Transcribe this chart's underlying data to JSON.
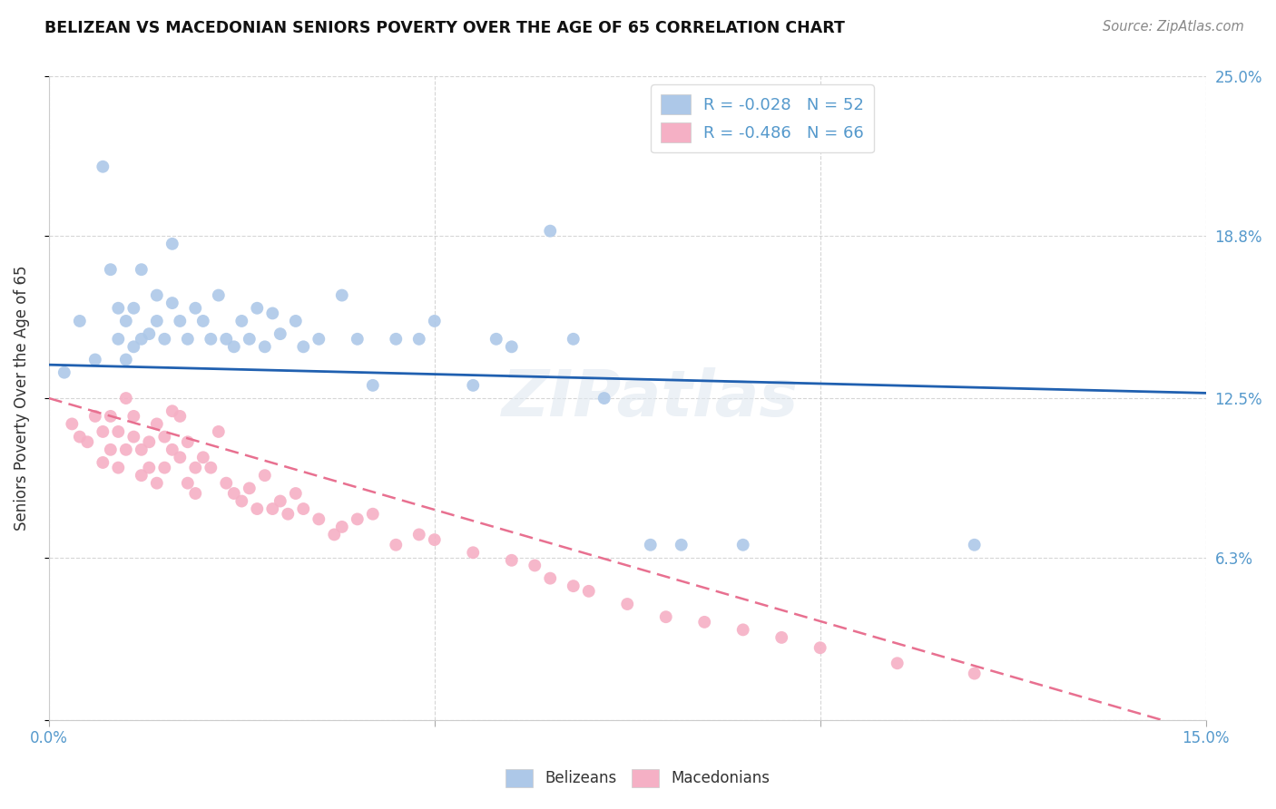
{
  "title": "BELIZEAN VS MACEDONIAN SENIORS POVERTY OVER THE AGE OF 65 CORRELATION CHART",
  "source": "Source: ZipAtlas.com",
  "ylabel": "Seniors Poverty Over the Age of 65",
  "xlim": [
    0.0,
    0.15
  ],
  "ylim": [
    0.0,
    0.25
  ],
  "ytick_positions": [
    0.0,
    0.063,
    0.125,
    0.188,
    0.25
  ],
  "ytick_labels": [
    "",
    "6.3%",
    "12.5%",
    "18.8%",
    "25.0%"
  ],
  "xtick_positions": [
    0.0,
    0.05,
    0.1,
    0.15
  ],
  "xtick_labels": [
    "0.0%",
    "",
    "",
    "15.0%"
  ],
  "belizean_color": "#adc8e8",
  "macedonian_color": "#f5b0c5",
  "belizean_line_color": "#2060b0",
  "macedonian_line_color": "#e87090",
  "tick_color": "#5599cc",
  "belizean_R": -0.028,
  "belizean_N": 52,
  "macedonian_R": -0.486,
  "macedonian_N": 66,
  "watermark": "ZIPatlas",
  "background_color": "#ffffff",
  "grid_color": "#cccccc",
  "belizean_x": [
    0.002,
    0.004,
    0.006,
    0.007,
    0.008,
    0.009,
    0.009,
    0.01,
    0.01,
    0.011,
    0.011,
    0.012,
    0.012,
    0.013,
    0.014,
    0.014,
    0.015,
    0.016,
    0.016,
    0.017,
    0.018,
    0.019,
    0.02,
    0.021,
    0.022,
    0.023,
    0.024,
    0.025,
    0.026,
    0.027,
    0.028,
    0.029,
    0.03,
    0.032,
    0.033,
    0.035,
    0.038,
    0.04,
    0.042,
    0.045,
    0.048,
    0.05,
    0.055,
    0.058,
    0.06,
    0.065,
    0.068,
    0.072,
    0.078,
    0.082,
    0.09,
    0.12
  ],
  "belizean_y": [
    0.135,
    0.155,
    0.14,
    0.215,
    0.175,
    0.148,
    0.16,
    0.14,
    0.155,
    0.145,
    0.16,
    0.148,
    0.175,
    0.15,
    0.155,
    0.165,
    0.148,
    0.162,
    0.185,
    0.155,
    0.148,
    0.16,
    0.155,
    0.148,
    0.165,
    0.148,
    0.145,
    0.155,
    0.148,
    0.16,
    0.145,
    0.158,
    0.15,
    0.155,
    0.145,
    0.148,
    0.165,
    0.148,
    0.13,
    0.148,
    0.148,
    0.155,
    0.13,
    0.148,
    0.145,
    0.19,
    0.148,
    0.125,
    0.068,
    0.068,
    0.068,
    0.068
  ],
  "macedonian_x": [
    0.003,
    0.004,
    0.005,
    0.006,
    0.007,
    0.007,
    0.008,
    0.008,
    0.009,
    0.009,
    0.01,
    0.01,
    0.011,
    0.011,
    0.012,
    0.012,
    0.013,
    0.013,
    0.014,
    0.014,
    0.015,
    0.015,
    0.016,
    0.016,
    0.017,
    0.017,
    0.018,
    0.018,
    0.019,
    0.019,
    0.02,
    0.021,
    0.022,
    0.023,
    0.024,
    0.025,
    0.026,
    0.027,
    0.028,
    0.029,
    0.03,
    0.031,
    0.032,
    0.033,
    0.035,
    0.037,
    0.038,
    0.04,
    0.042,
    0.045,
    0.048,
    0.05,
    0.055,
    0.06,
    0.063,
    0.065,
    0.068,
    0.07,
    0.075,
    0.08,
    0.085,
    0.09,
    0.095,
    0.1,
    0.11,
    0.12
  ],
  "macedonian_y": [
    0.115,
    0.11,
    0.108,
    0.118,
    0.112,
    0.1,
    0.118,
    0.105,
    0.112,
    0.098,
    0.105,
    0.125,
    0.11,
    0.118,
    0.105,
    0.095,
    0.108,
    0.098,
    0.115,
    0.092,
    0.11,
    0.098,
    0.105,
    0.12,
    0.102,
    0.118,
    0.092,
    0.108,
    0.088,
    0.098,
    0.102,
    0.098,
    0.112,
    0.092,
    0.088,
    0.085,
    0.09,
    0.082,
    0.095,
    0.082,
    0.085,
    0.08,
    0.088,
    0.082,
    0.078,
    0.072,
    0.075,
    0.078,
    0.08,
    0.068,
    0.072,
    0.07,
    0.065,
    0.062,
    0.06,
    0.055,
    0.052,
    0.05,
    0.045,
    0.04,
    0.038,
    0.035,
    0.032,
    0.028,
    0.022,
    0.018
  ]
}
